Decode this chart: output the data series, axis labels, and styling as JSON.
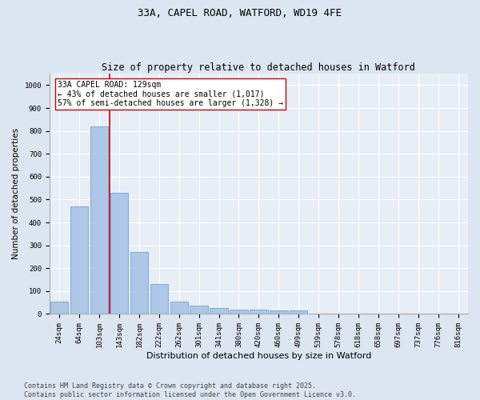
{
  "title1": "33A, CAPEL ROAD, WATFORD, WD19 4FE",
  "title2": "Size of property relative to detached houses in Watford",
  "xlabel": "Distribution of detached houses by size in Watford",
  "ylabel": "Number of detached properties",
  "categories": [
    "24sqm",
    "64sqm",
    "103sqm",
    "143sqm",
    "182sqm",
    "222sqm",
    "262sqm",
    "301sqm",
    "341sqm",
    "380sqm",
    "420sqm",
    "460sqm",
    "499sqm",
    "539sqm",
    "578sqm",
    "618sqm",
    "658sqm",
    "697sqm",
    "737sqm",
    "776sqm",
    "816sqm"
  ],
  "values": [
    55,
    470,
    820,
    530,
    270,
    130,
    55,
    35,
    25,
    20,
    20,
    15,
    15,
    0,
    0,
    0,
    0,
    0,
    0,
    0,
    0
  ],
  "bar_color": "#aec6e8",
  "bar_edge_color": "#5b9bd5",
  "vline_color": "#cc0000",
  "annotation_text": "33A CAPEL ROAD: 129sqm\n← 43% of detached houses are smaller (1,017)\n57% of semi-detached houses are larger (1,328) →",
  "annotation_box_color": "#ffffff",
  "annotation_box_edgecolor": "#cc0000",
  "ylim": [
    0,
    1050
  ],
  "yticks": [
    0,
    100,
    200,
    300,
    400,
    500,
    600,
    700,
    800,
    900,
    1000
  ],
  "background_color": "#e8eef5",
  "grid_color": "#ffffff",
  "footer": "Contains HM Land Registry data © Crown copyright and database right 2025.\nContains public sector information licensed under the Open Government Licence v3.0.",
  "title_fontsize": 9,
  "subtitle_fontsize": 8.5,
  "xlabel_fontsize": 8,
  "ylabel_fontsize": 7.5,
  "tick_fontsize": 6.5,
  "annotation_fontsize": 7,
  "footer_fontsize": 6
}
